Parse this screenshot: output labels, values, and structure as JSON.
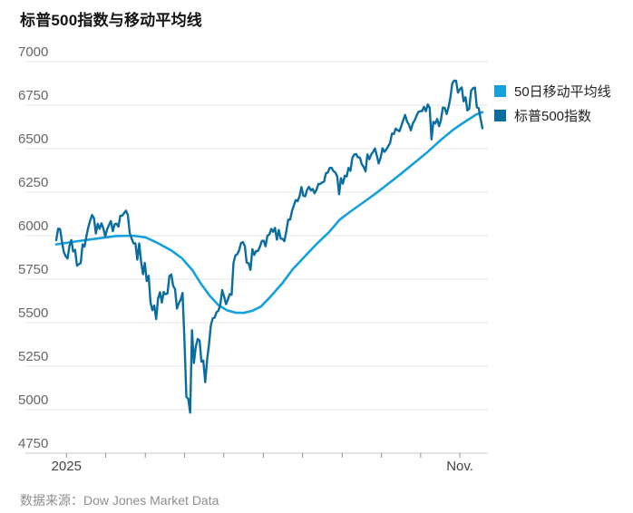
{
  "title": "标普500指数与移动平均线",
  "source": {
    "prefix": "数据来源：",
    "name": "Dow Jones Market Data"
  },
  "legend": [
    {
      "label": "50日移动平均线",
      "color": "#14a0dc"
    },
    {
      "label": "标普500指数",
      "color": "#0a6da0"
    }
  ],
  "chart_data": {
    "type": "line",
    "title": "标普500指数与移动平均线",
    "ylabel": "",
    "xlabel": "",
    "ylim": [
      4750,
      7000
    ],
    "grid": true,
    "legend_position": "right",
    "y_axis": {
      "ticks": [
        7000,
        6750,
        6500,
        6250,
        6000,
        5750,
        5500,
        5250,
        5000,
        4750
      ]
    },
    "x_axis": {
      "ticks": [
        {
          "t": 0.024,
          "label": "2025"
        },
        {
          "t": 0.116,
          "label": ""
        },
        {
          "t": 0.209,
          "label": ""
        },
        {
          "t": 0.301,
          "label": ""
        },
        {
          "t": 0.393,
          "label": ""
        },
        {
          "t": 0.486,
          "label": ""
        },
        {
          "t": 0.578,
          "label": ""
        },
        {
          "t": 0.671,
          "label": ""
        },
        {
          "t": 0.763,
          "label": ""
        },
        {
          "t": 0.855,
          "label": ""
        },
        {
          "t": 0.947,
          "label": "Nov."
        }
      ]
    },
    "series": [
      {
        "key": "ma50",
        "name": "50日移动平均线",
        "color": "#14a0dc",
        "width": 2.6,
        "points": [
          [
            0.0,
            5950
          ],
          [
            0.05,
            5968
          ],
          [
            0.1,
            5985
          ],
          [
            0.14,
            5998
          ],
          [
            0.18,
            6000
          ],
          [
            0.21,
            5990
          ],
          [
            0.24,
            5955
          ],
          [
            0.27,
            5915
          ],
          [
            0.295,
            5870
          ],
          [
            0.32,
            5800
          ],
          [
            0.34,
            5722
          ],
          [
            0.36,
            5655
          ],
          [
            0.38,
            5602
          ],
          [
            0.4,
            5572
          ],
          [
            0.42,
            5558
          ],
          [
            0.44,
            5556
          ],
          [
            0.46,
            5568
          ],
          [
            0.48,
            5592
          ],
          [
            0.5,
            5642
          ],
          [
            0.53,
            5725
          ],
          [
            0.555,
            5808
          ],
          [
            0.585,
            5885
          ],
          [
            0.61,
            5950
          ],
          [
            0.64,
            6020
          ],
          [
            0.665,
            6092
          ],
          [
            0.69,
            6138
          ],
          [
            0.72,
            6190
          ],
          [
            0.75,
            6243
          ],
          [
            0.78,
            6300
          ],
          [
            0.81,
            6358
          ],
          [
            0.84,
            6418
          ],
          [
            0.87,
            6478
          ],
          [
            0.9,
            6545
          ],
          [
            0.93,
            6606
          ],
          [
            0.95,
            6640
          ],
          [
            0.97,
            6672
          ],
          [
            0.985,
            6696
          ],
          [
            1.0,
            6710
          ]
        ]
      },
      {
        "key": "sp500",
        "name": "标普500指数",
        "color": "#0a6da0",
        "width": 2.4,
        "values": [
          5974,
          6040,
          6038,
          5971,
          5907,
          5882,
          5869,
          5942,
          5975,
          5909,
          5918,
          5827,
          5836,
          5843,
          5950,
          5937,
          5997,
          6049,
          6086,
          6119,
          6101,
          6012,
          6068,
          6039,
          6071,
          6041,
          5995,
          6038,
          6061,
          6084,
          6026,
          6066,
          6069,
          6052,
          6115,
          6115,
          6130,
          6144,
          6118,
          6013,
          5983,
          5955,
          5956,
          5862,
          5955,
          5850,
          5778,
          5843,
          5739,
          5770,
          5615,
          5572,
          5599,
          5521,
          5639,
          5675,
          5615,
          5676,
          5663,
          5668,
          5768,
          5777,
          5712,
          5693,
          5581,
          5612,
          5633,
          5671,
          5396,
          5074,
          5062,
          4983,
          5457,
          5268,
          5363,
          5406,
          5397,
          5276,
          5283,
          5158,
          5288,
          5376,
          5485,
          5525,
          5529,
          5561,
          5569,
          5604,
          5687,
          5650,
          5607,
          5631,
          5664,
          5660,
          5844,
          5887,
          5893,
          5916,
          5958,
          5963,
          5940,
          5845,
          5842,
          5803,
          5922,
          5889,
          5912,
          5912,
          5936,
          5970,
          5971,
          5939,
          6000,
          6006,
          6039,
          6022,
          6045,
          5977,
          6033,
          5983,
          5981,
          5968,
          6025,
          6092,
          6092,
          6141,
          6173,
          6205,
          6198,
          6227,
          6279,
          6230,
          6226,
          6263,
          6280,
          6260,
          6268,
          6244,
          6264,
          6297,
          6297,
          6306,
          6310,
          6359,
          6363,
          6389,
          6390,
          6371,
          6363,
          6339,
          6238,
          6330,
          6299,
          6345,
          6340,
          6389,
          6373,
          6446,
          6466,
          6469,
          6450,
          6449,
          6411,
          6395,
          6370,
          6467,
          6439,
          6466,
          6481,
          6501,
          6460,
          6415,
          6448,
          6502,
          6481,
          6495,
          6513,
          6532,
          6587,
          6584,
          6615,
          6606,
          6600,
          6632,
          6664,
          6694,
          6656,
          6638,
          6605,
          6644,
          6661,
          6688,
          6711,
          6715,
          6716,
          6740,
          6715,
          6754,
          6735,
          6553,
          6654,
          6645,
          6671,
          6629,
          6664,
          6736,
          6735,
          6699,
          6739,
          6792,
          6875,
          6891,
          6890,
          6822,
          6840,
          6852,
          6772,
          6796,
          6720,
          6729,
          6833,
          6847,
          6851,
          6737,
          6734,
          6672,
          6617
        ]
      }
    ]
  }
}
